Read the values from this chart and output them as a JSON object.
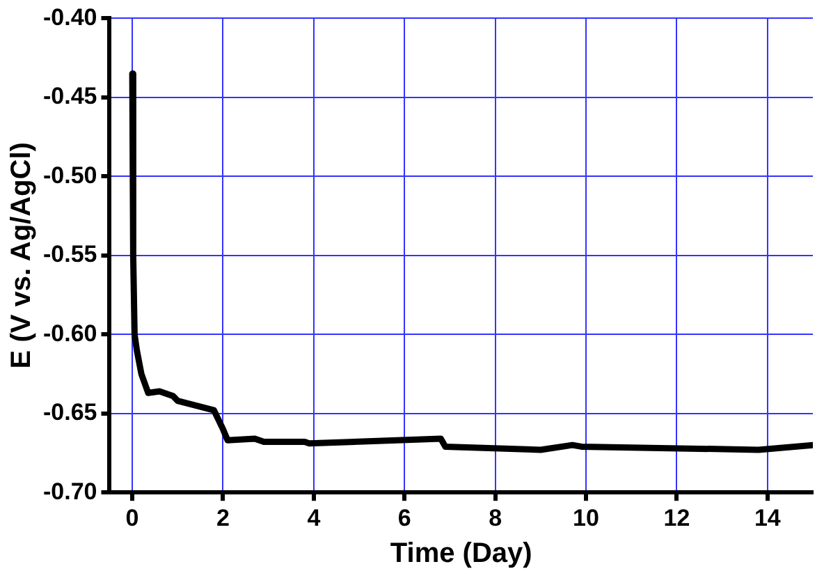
{
  "chart_data": {
    "type": "line",
    "xlabel": "Time (Day)",
    "ylabel": "E (V vs. Ag/AgCl)",
    "series": [
      {
        "color": "#000000",
        "x": [
          0,
          0.02,
          0.05,
          0.1,
          0.2,
          0.35,
          0.6,
          0.9,
          1.0,
          1.8,
          2.0,
          2.1,
          2.7,
          2.9,
          3.8,
          3.9,
          6.8,
          6.9,
          9.0,
          9.7,
          9.9,
          13.8,
          15
        ],
        "values": [
          -0.435,
          -0.55,
          -0.6,
          -0.61,
          -0.625,
          -0.637,
          -0.636,
          -0.639,
          -0.642,
          -0.648,
          -0.66,
          -0.667,
          -0.666,
          -0.668,
          -0.668,
          -0.669,
          -0.666,
          -0.671,
          -0.673,
          -0.67,
          -0.671,
          -0.673,
          -0.67
        ]
      }
    ],
    "xlim": [
      -0.5,
      15
    ],
    "xticks": [
      0,
      2,
      4,
      6,
      8,
      10,
      12,
      14
    ],
    "ylim": [
      -0.7,
      -0.4
    ],
    "yticks": [
      {
        "value": -0.7,
        "label": "-0.70"
      },
      {
        "value": -0.65,
        "label": "-0.65"
      },
      {
        "value": -0.6,
        "label": "-0.60"
      },
      {
        "value": -0.55,
        "label": "-0.55"
      },
      {
        "value": -0.5,
        "label": "-0.50"
      },
      {
        "value": -0.45,
        "label": "-0.45"
      },
      {
        "value": -0.4,
        "label": "-0.40"
      }
    ],
    "grid": true,
    "legend": false,
    "marker": "none",
    "line_style": "solid"
  }
}
